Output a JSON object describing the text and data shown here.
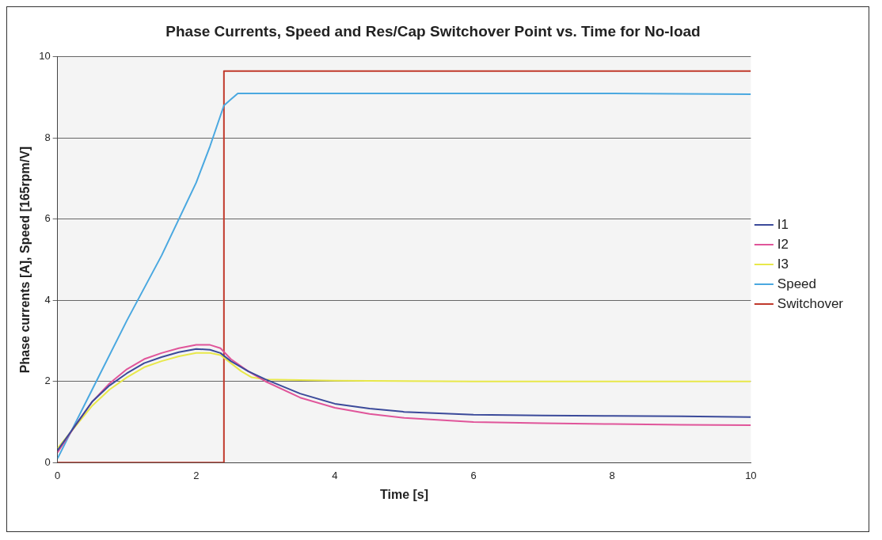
{
  "chart_data": {
    "type": "line",
    "title": "Phase Currents, Speed and Res/Cap Switchover Point vs. Time for No-load",
    "xlabel": "Time [s]",
    "ylabel": "Phase currents [A], Speed [165rpm/V]",
    "xlim": [
      0,
      10
    ],
    "xticks": [
      0,
      2,
      4,
      6,
      8,
      10
    ],
    "ylim": [
      0,
      10
    ],
    "yticks": [
      0,
      2,
      4,
      6,
      8,
      10
    ],
    "grid": "y",
    "legend": "right",
    "marker": "none",
    "line_style": "solid",
    "series": [
      {
        "name": "I1",
        "color": "#3b4a9a",
        "x": [
          0,
          0.25,
          0.5,
          0.75,
          1,
          1.25,
          1.5,
          1.75,
          2,
          2.2,
          2.35,
          2.5,
          2.75,
          3,
          3.5,
          4,
          4.5,
          5,
          6,
          7,
          8,
          9,
          10
        ],
        "values": [
          0.3,
          0.9,
          1.5,
          1.9,
          2.2,
          2.45,
          2.6,
          2.72,
          2.8,
          2.78,
          2.7,
          2.5,
          2.25,
          2.05,
          1.7,
          1.45,
          1.33,
          1.25,
          1.18,
          1.16,
          1.15,
          1.14,
          1.12
        ]
      },
      {
        "name": "I2",
        "color": "#e0559a",
        "x": [
          0,
          0.25,
          0.5,
          0.75,
          1,
          1.25,
          1.5,
          1.75,
          2,
          2.2,
          2.35,
          2.5,
          2.75,
          3,
          3.5,
          4,
          4.5,
          5,
          6,
          7,
          8,
          9,
          10
        ],
        "values": [
          0.25,
          0.9,
          1.5,
          1.95,
          2.3,
          2.55,
          2.7,
          2.82,
          2.9,
          2.9,
          2.82,
          2.55,
          2.25,
          2.0,
          1.6,
          1.35,
          1.2,
          1.1,
          1.0,
          0.97,
          0.95,
          0.93,
          0.92
        ]
      },
      {
        "name": "I3",
        "color": "#e8e84a",
        "x": [
          0,
          0.5,
          0.75,
          1,
          1.25,
          1.5,
          1.75,
          2,
          2.2,
          2.35,
          2.5,
          2.65,
          2.8,
          3,
          4,
          6,
          8,
          10
        ],
        "values": [
          0.35,
          1.4,
          1.8,
          2.1,
          2.35,
          2.5,
          2.62,
          2.7,
          2.7,
          2.65,
          2.45,
          2.25,
          2.1,
          2.05,
          2.02,
          2.0,
          2.0,
          2.0
        ]
      },
      {
        "name": "Speed",
        "color": "#4aa8e0",
        "x": [
          0,
          0.5,
          1,
          1.5,
          2,
          2.2,
          2.4,
          2.5,
          2.6,
          3,
          4,
          6,
          8,
          10
        ],
        "values": [
          0.1,
          1.8,
          3.5,
          5.1,
          6.9,
          7.8,
          8.8,
          8.95,
          9.1,
          9.1,
          9.1,
          9.1,
          9.1,
          9.08
        ]
      },
      {
        "name": "Switchover",
        "color": "#c0392b",
        "x": [
          0,
          2.4,
          2.4,
          10
        ],
        "values": [
          0,
          0,
          9.65,
          9.65
        ]
      }
    ]
  }
}
